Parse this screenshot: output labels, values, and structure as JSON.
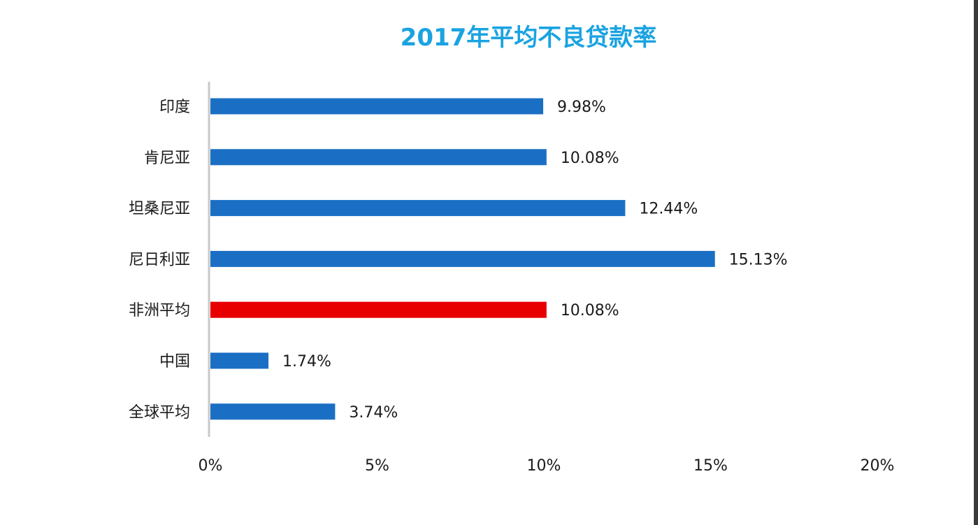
{
  "chart_data": {
    "type": "bar",
    "orientation": "horizontal",
    "title": "2017年平均不良贷款率",
    "categories": [
      "印度",
      "肯尼亚",
      "坦桑尼亚",
      "尼日利亚",
      "非洲平均",
      "中国",
      "全球平均"
    ],
    "values": [
      9.98,
      10.08,
      12.44,
      15.13,
      10.08,
      1.74,
      3.74
    ],
    "data_labels": [
      "9.98%",
      "10.08%",
      "12.44%",
      "15.13%",
      "10.08%",
      "1.74%",
      "3.74%"
    ],
    "xlim": [
      0,
      20
    ],
    "x_ticks": [
      0,
      5,
      10,
      15,
      20
    ],
    "x_tick_labels": [
      "0%",
      "5%",
      "10%",
      "15%",
      "20%"
    ],
    "grid": false,
    "legend": "none",
    "colors": {
      "bar": "#1a6fc4",
      "highlight": "#e80000",
      "title": "#1aa3e1",
      "axis": "#c8c8c8",
      "text": "#1a1a1a"
    },
    "highlight_index": 4
  }
}
